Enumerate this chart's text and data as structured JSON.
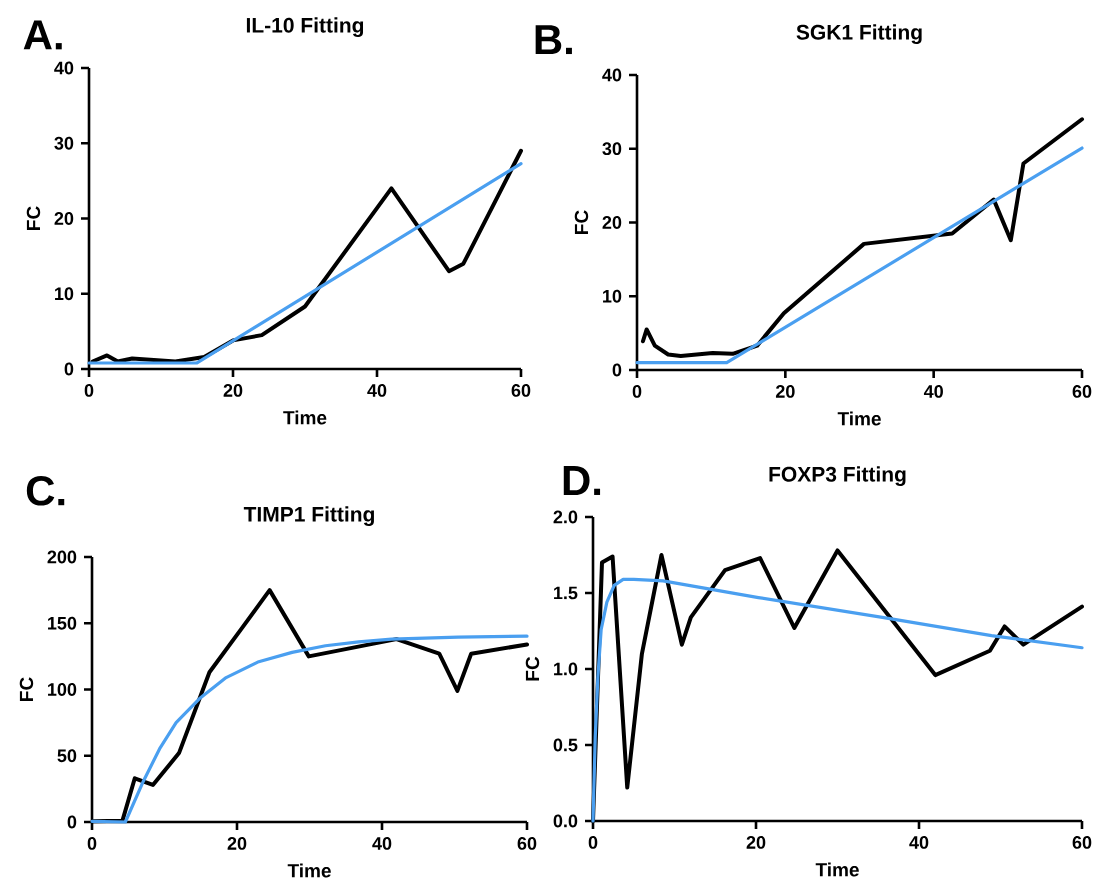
{
  "chart_data": [
    {
      "type": "line",
      "title": "IL-10 Fitting",
      "xlabel": "Time",
      "ylabel": "FC",
      "annotations": [
        "A."
      ],
      "xlim": [
        0,
        60
      ],
      "ylim": [
        0,
        40
      ],
      "xticks": [
        0,
        20,
        40,
        60
      ],
      "yticks": [
        0,
        10,
        20,
        30,
        40
      ],
      "grid": false,
      "marker": "none",
      "line_style": "solid",
      "series": [
        {
          "color": "#000000",
          "x": [
            0.5,
            2.5,
            4,
            6,
            12,
            16,
            20,
            24,
            30,
            42,
            50,
            52,
            60
          ],
          "values": [
            1,
            1.8,
            1,
            1.4,
            1,
            1.6,
            3.8,
            4.5,
            8.3,
            24,
            13,
            14,
            29
          ]
        },
        {
          "color": "#4a9ff0",
          "x": [
            0,
            15,
            60
          ],
          "values": [
            0.8,
            0.8,
            27.3
          ]
        }
      ]
    },
    {
      "type": "line",
      "title": "SGK1 Fitting",
      "xlabel": "Time",
      "ylabel": "FC",
      "annotations": [
        "B."
      ],
      "xlim": [
        0,
        60
      ],
      "ylim": [
        0,
        40
      ],
      "xticks": [
        0,
        20,
        40,
        60
      ],
      "yticks": [
        0,
        10,
        20,
        30,
        40
      ],
      "grid": false,
      "marker": "none",
      "line_style": "solid",
      "series": [
        {
          "color": "#000000",
          "x": [
            0.8,
            1.3,
            2.4,
            4.2,
            5.9,
            10.2,
            12.9,
            16.2,
            19.8,
            30.6,
            42.5,
            48.1,
            50.4,
            52.1,
            60
          ],
          "values": [
            3.9,
            5.5,
            3.3,
            2.1,
            1.9,
            2.3,
            2.2,
            3.3,
            7.7,
            17.1,
            18.5,
            23.1,
            17.6,
            28,
            34
          ]
        },
        {
          "color": "#4a9ff0",
          "x": [
            0,
            12.1,
            60
          ],
          "values": [
            1,
            1,
            30.1
          ]
        }
      ]
    },
    {
      "type": "line",
      "title": "TIMP1 Fitting",
      "xlabel": "Time",
      "ylabel": "FC",
      "annotations": [
        "C."
      ],
      "xlim": [
        0,
        60
      ],
      "ylim": [
        0,
        200
      ],
      "xticks": [
        0,
        20,
        40,
        60
      ],
      "yticks": [
        0,
        50,
        100,
        150,
        200
      ],
      "grid": false,
      "marker": "none",
      "line_style": "solid",
      "series": [
        {
          "color": "#000000",
          "x": [
            0.2,
            4.2,
            5.9,
            8.4,
            12,
            16.2,
            20.5,
            24.5,
            29.9,
            42,
            47.9,
            50.4,
            52.3,
            60
          ],
          "values": [
            0.5,
            1,
            33,
            28,
            52,
            113,
            145,
            175,
            125,
            138,
            127,
            99,
            127,
            134
          ]
        },
        {
          "color": "#4a9ff0",
          "x": [
            0,
            4.6,
            7.1,
            9.4,
            11.6,
            14.8,
            18.5,
            23,
            27.6,
            32.2,
            36.8,
            41.3,
            50.5,
            60
          ],
          "values": [
            0.5,
            0,
            31,
            56,
            75,
            93,
            109,
            121,
            128,
            133,
            136,
            138,
            139.6,
            140.3
          ]
        }
      ]
    },
    {
      "type": "line",
      "title": "FOXP3 Fitting",
      "xlabel": "Time",
      "ylabel": "FC",
      "annotations": [
        "D."
      ],
      "xlim": [
        0,
        60
      ],
      "ylim": [
        0,
        2
      ],
      "xticks": [
        0,
        20,
        40,
        60
      ],
      "yticks": [
        {
          "value": 0,
          "label": "0.0"
        },
        {
          "value": 0.5,
          "label": "0.5"
        },
        {
          "value": 1,
          "label": "1.0"
        },
        {
          "value": 1.5,
          "label": "1.5"
        },
        {
          "value": 2,
          "label": "2.0"
        }
      ],
      "grid": false,
      "marker": "none",
      "line_style": "solid",
      "series": [
        {
          "color": "#000000",
          "x": [
            0,
            1.1,
            2.4,
            4.2,
            6,
            8.4,
            10.9,
            12,
            16.2,
            20.5,
            24.7,
            30,
            42,
            48.7,
            50.5,
            52.8,
            60
          ],
          "values": [
            0,
            1.7,
            1.74,
            0.22,
            1.1,
            1.75,
            1.16,
            1.34,
            1.65,
            1.73,
            1.27,
            1.78,
            0.96,
            1.12,
            1.28,
            1.16,
            1.41
          ]
        },
        {
          "color": "#4a9ff0",
          "x": [
            0,
            0.27,
            0.6,
            1,
            1.7,
            2.6,
            3.7,
            5,
            8.6,
            20.3,
            35.5,
            48.9,
            60
          ],
          "values": [
            0,
            0.55,
            0.95,
            1.26,
            1.44,
            1.55,
            1.59,
            1.59,
            1.58,
            1.47,
            1.34,
            1.22,
            1.14
          ]
        }
      ]
    }
  ]
}
